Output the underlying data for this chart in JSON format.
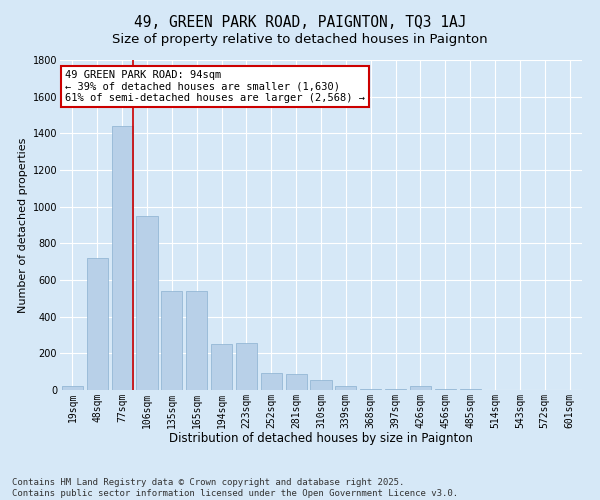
{
  "title": "49, GREEN PARK ROAD, PAIGNTON, TQ3 1AJ",
  "subtitle": "Size of property relative to detached houses in Paignton",
  "xlabel": "Distribution of detached houses by size in Paignton",
  "ylabel": "Number of detached properties",
  "categories": [
    "19sqm",
    "48sqm",
    "77sqm",
    "106sqm",
    "135sqm",
    "165sqm",
    "194sqm",
    "223sqm",
    "252sqm",
    "281sqm",
    "310sqm",
    "339sqm",
    "368sqm",
    "397sqm",
    "426sqm",
    "456sqm",
    "485sqm",
    "514sqm",
    "543sqm",
    "572sqm",
    "601sqm"
  ],
  "values": [
    20,
    720,
    1440,
    950,
    540,
    540,
    250,
    255,
    95,
    90,
    55,
    20,
    5,
    5,
    20,
    5,
    5,
    0,
    0,
    0,
    0
  ],
  "bar_color": "#b8d0e8",
  "bar_edgecolor": "#8ab0d0",
  "vline_x_index": 2.42,
  "vline_color": "#cc0000",
  "annotation_text": "49 GREEN PARK ROAD: 94sqm\n← 39% of detached houses are smaller (1,630)\n61% of semi-detached houses are larger (2,568) →",
  "annotation_box_facecolor": "#ffffff",
  "annotation_box_edgecolor": "#cc0000",
  "background_color": "#d6e8f7",
  "plot_bg_color": "#d6e8f7",
  "ylim": [
    0,
    1800
  ],
  "yticks": [
    0,
    200,
    400,
    600,
    800,
    1000,
    1200,
    1400,
    1600,
    1800
  ],
  "grid_color": "#ffffff",
  "footnote": "Contains HM Land Registry data © Crown copyright and database right 2025.\nContains public sector information licensed under the Open Government Licence v3.0.",
  "title_fontsize": 10.5,
  "subtitle_fontsize": 9.5,
  "xlabel_fontsize": 8.5,
  "ylabel_fontsize": 8,
  "tick_fontsize": 7,
  "annotation_fontsize": 7.5,
  "footnote_fontsize": 6.5
}
